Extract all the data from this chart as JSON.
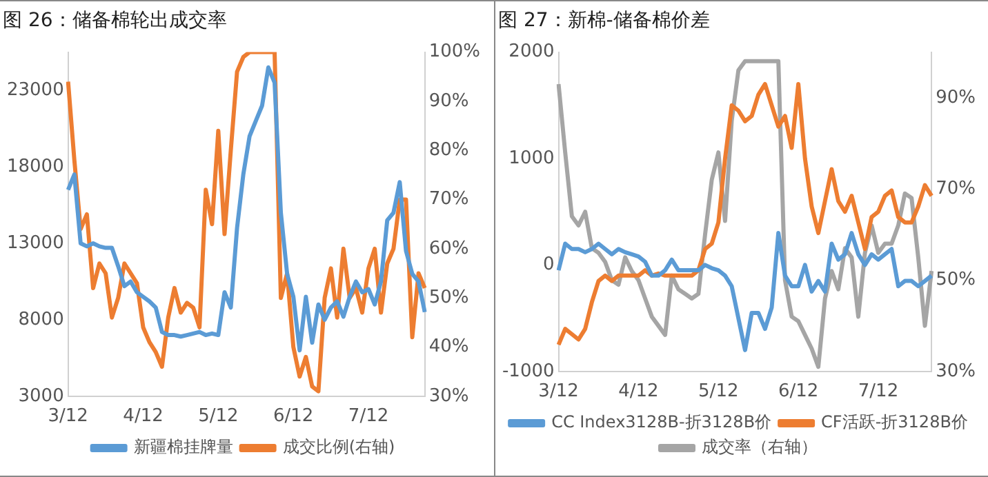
{
  "chart_data": [
    {
      "type": "line",
      "title": "图 26：储备棉轮出成交率",
      "categories": [
        "3/12",
        null,
        null,
        null,
        null,
        null,
        null,
        null,
        null,
        null,
        null,
        null,
        "4/12",
        null,
        null,
        null,
        null,
        null,
        null,
        null,
        null,
        null,
        null,
        null,
        "5/12",
        null,
        null,
        null,
        null,
        null,
        null,
        null,
        null,
        null,
        null,
        null,
        "6/12",
        null,
        null,
        null,
        null,
        null,
        null,
        null,
        null,
        null,
        null,
        null,
        "7/12",
        null,
        null,
        null,
        null,
        null,
        null,
        null,
        null,
        null
      ],
      "series": [
        {
          "name": "新疆棉挂牌量",
          "color": "#5b9bd5",
          "values": [
            16500,
            17500,
            13000,
            12800,
            13000,
            12800,
            12700,
            12700,
            11500,
            10200,
            10500,
            9800,
            9500,
            9200,
            8800,
            7200,
            7000,
            7000,
            6900,
            7000,
            7100,
            7200,
            7000,
            7100,
            7000,
            9800,
            8800,
            14000,
            17500,
            20000,
            21000,
            22000,
            24500,
            23500,
            15000,
            11000,
            9500,
            6000,
            9500,
            6500,
            9000,
            8000,
            8800,
            9200,
            8200,
            9500,
            10500,
            9800,
            10000,
            9000,
            10500,
            14500,
            15000,
            17000,
            12500,
            11000,
            10500,
            8500
          ]
        },
        {
          "name": "成交比例(右轴)",
          "color": "#ed7d31",
          "axis": "y2",
          "values": [
            94,
            78,
            64,
            67,
            52,
            57,
            55,
            46,
            50,
            57,
            55,
            53,
            44,
            41,
            39,
            36,
            46,
            52,
            47,
            49,
            48,
            44,
            72,
            65,
            84,
            63,
            80,
            96,
            99,
            100,
            100,
            100,
            100,
            100,
            50,
            55,
            40,
            34,
            38,
            32,
            31,
            50,
            56,
            46,
            60,
            50,
            52,
            47,
            56,
            60,
            47,
            57,
            60,
            70,
            70,
            42,
            55,
            52
          ]
        }
      ],
      "ylim": [
        3000,
        25500
      ],
      "yticks": [
        3000,
        8000,
        13000,
        18000,
        23000
      ],
      "y2lim": [
        30,
        100
      ],
      "y2ticks": [
        {
          "value": 30,
          "label": "30%"
        },
        {
          "value": 40,
          "label": "40%"
        },
        {
          "value": 50,
          "label": "50%"
        },
        {
          "value": 60,
          "label": "60%"
        },
        {
          "value": 70,
          "label": "70%"
        },
        {
          "value": 80,
          "label": "80%"
        },
        {
          "value": 90,
          "label": "90%"
        },
        {
          "value": 100,
          "label": "100%"
        }
      ],
      "legend": "bottom",
      "marker": "none",
      "line_style": "solid"
    },
    {
      "type": "line",
      "title": "图 27：新棉-储备棉价差",
      "categories": [
        "3/12",
        null,
        null,
        null,
        null,
        null,
        null,
        null,
        null,
        null,
        null,
        null,
        "4/12",
        null,
        null,
        null,
        null,
        null,
        null,
        null,
        null,
        null,
        null,
        null,
        "5/12",
        null,
        null,
        null,
        null,
        null,
        null,
        null,
        null,
        null,
        null,
        null,
        "6/12",
        null,
        null,
        null,
        null,
        null,
        null,
        null,
        null,
        null,
        null,
        null,
        "7/12",
        null,
        null,
        null,
        null,
        null,
        null,
        null,
        null
      ],
      "series": [
        {
          "name": "CC Index3128B-折3128B价",
          "color": "#5b9bd5",
          "values": [
            -50,
            200,
            150,
            150,
            120,
            150,
            200,
            150,
            100,
            150,
            120,
            100,
            80,
            30,
            -100,
            -100,
            -50,
            50,
            -50,
            -50,
            -50,
            -50,
            0,
            -30,
            -50,
            -100,
            -200,
            -500,
            -800,
            -450,
            -450,
            -600,
            -400,
            300,
            -100,
            -200,
            -200,
            0,
            -250,
            -150,
            -250,
            200,
            50,
            100,
            300,
            100,
            0,
            100,
            50,
            100,
            150,
            -200,
            -150,
            -150,
            -200,
            -150,
            -100
          ]
        },
        {
          "name": "CF活跃-折3128B价",
          "color": "#ed7d31",
          "values": [
            -750,
            -600,
            -650,
            -700,
            -600,
            -350,
            -150,
            -100,
            -150,
            -100,
            -100,
            -100,
            -100,
            -50,
            -100,
            -80,
            -100,
            -100,
            -100,
            -100,
            -100,
            -50,
            150,
            200,
            400,
            1000,
            1500,
            1450,
            1350,
            1400,
            1600,
            1700,
            1500,
            1300,
            1400,
            1100,
            1700,
            1000,
            550,
            300,
            600,
            900,
            600,
            500,
            650,
            400,
            150,
            450,
            500,
            650,
            700,
            450,
            400,
            400,
            550,
            750,
            650
          ]
        },
        {
          "name": "成交率（右轴）",
          "color": "#a5a5a5",
          "axis": "y2",
          "values": [
            93,
            78,
            64,
            62,
            65,
            57,
            56,
            54,
            50,
            49,
            55,
            52,
            50,
            46,
            42,
            40,
            38,
            51,
            48,
            47,
            46,
            47,
            60,
            72,
            78,
            63,
            85,
            96,
            98,
            98,
            98,
            98,
            98,
            98,
            50,
            42,
            41,
            38,
            35,
            31,
            46,
            52,
            48,
            57,
            55,
            42,
            56,
            62,
            56,
            58,
            58,
            62,
            69,
            68,
            55,
            40,
            52
          ]
        }
      ],
      "ylim": [
        -1000,
        2000
      ],
      "yticks": [
        -1000,
        0,
        1000,
        2000
      ],
      "y2lim": [
        30,
        100
      ],
      "y2ticks": [
        {
          "value": 30,
          "label": "30%"
        },
        {
          "value": 50,
          "label": "50%"
        },
        {
          "value": 70,
          "label": "70%"
        },
        {
          "value": 90,
          "label": "90%"
        }
      ],
      "legend": "bottom",
      "marker": "none",
      "line_style": "solid"
    }
  ]
}
